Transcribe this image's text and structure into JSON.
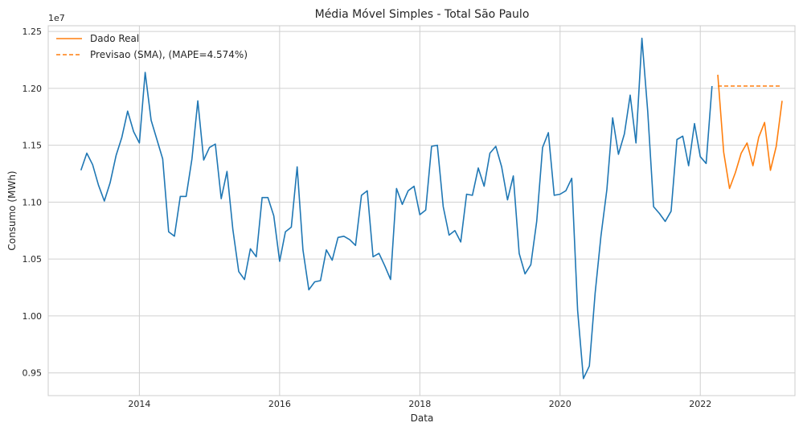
{
  "chart_data": {
    "type": "line",
    "title": "Média Móvel Simples - Total São Paulo",
    "xlabel": "Data",
    "ylabel": "Consumo (MWh)",
    "y_offset_label": "1e7",
    "y_scale": 10000000,
    "xlim": [
      2012.7,
      2023.35
    ],
    "ylim": [
      9300000,
      12550000
    ],
    "x_ticks": [
      2014,
      2016,
      2018,
      2020,
      2022
    ],
    "x_tick_labels": [
      "2014",
      "2016",
      "2018",
      "2020",
      "2022"
    ],
    "y_ticks": [
      9500000,
      10000000,
      10500000,
      11000000,
      11500000,
      12000000,
      12500000
    ],
    "y_tick_labels": [
      "0.95",
      "1.00",
      "1.05",
      "1.10",
      "1.15",
      "1.20",
      "1.25"
    ],
    "grid": true,
    "legend_position": "top-left",
    "colors": {
      "historico": "#1f77b4",
      "real": "#ff7f0e",
      "previsao": "#ff7f0e"
    },
    "series": [
      {
        "key": "historico",
        "style": "solid",
        "x": [
          2013.167,
          2013.25,
          2013.333,
          2013.417,
          2013.5,
          2013.583,
          2013.667,
          2013.75,
          2013.833,
          2013.917,
          2014.0,
          2014.083,
          2014.167,
          2014.25,
          2014.333,
          2014.417,
          2014.5,
          2014.583,
          2014.667,
          2014.75,
          2014.833,
          2014.917,
          2015.0,
          2015.083,
          2015.167,
          2015.25,
          2015.333,
          2015.417,
          2015.5,
          2015.583,
          2015.667,
          2015.75,
          2015.833,
          2015.917,
          2016.0,
          2016.083,
          2016.167,
          2016.25,
          2016.333,
          2016.417,
          2016.5,
          2016.583,
          2016.667,
          2016.75,
          2016.833,
          2016.917,
          2017.0,
          2017.083,
          2017.167,
          2017.25,
          2017.333,
          2017.417,
          2017.5,
          2017.583,
          2017.667,
          2017.75,
          2017.833,
          2017.917,
          2018.0,
          2018.083,
          2018.167,
          2018.25,
          2018.333,
          2018.417,
          2018.5,
          2018.583,
          2018.667,
          2018.75,
          2018.833,
          2018.917,
          2019.0,
          2019.083,
          2019.167,
          2019.25,
          2019.333,
          2019.417,
          2019.5,
          2019.583,
          2019.667,
          2019.75,
          2019.833,
          2019.917,
          2020.0,
          2020.083,
          2020.167,
          2020.25,
          2020.333,
          2020.417,
          2020.5,
          2020.583,
          2020.667,
          2020.75,
          2020.833,
          2020.917,
          2021.0,
          2021.083,
          2021.167,
          2021.25,
          2021.333,
          2021.417,
          2021.5,
          2021.583,
          2021.667,
          2021.75,
          2021.833,
          2021.917,
          2022.0,
          2022.083,
          2022.167
        ],
        "y": [
          11280000,
          11430000,
          11330000,
          11150000,
          11010000,
          11170000,
          11410000,
          11570000,
          11800000,
          11620000,
          11520000,
          12140000,
          11720000,
          11550000,
          11380000,
          10740000,
          10700000,
          11050000,
          11050000,
          11380000,
          11890000,
          11370000,
          11480000,
          11510000,
          11030000,
          11270000,
          10760000,
          10390000,
          10320000,
          10590000,
          10520000,
          11040000,
          11040000,
          10880000,
          10480000,
          10740000,
          10780000,
          11310000,
          10580000,
          10230000,
          10300000,
          10310000,
          10580000,
          10490000,
          10690000,
          10700000,
          10670000,
          10620000,
          11060000,
          11100000,
          10520000,
          10550000,
          10440000,
          10320000,
          11120000,
          10980000,
          11100000,
          11140000,
          10890000,
          10930000,
          11490000,
          11500000,
          10960000,
          10710000,
          10750000,
          10650000,
          11070000,
          11060000,
          11300000,
          11140000,
          11430000,
          11490000,
          11310000,
          11020000,
          11230000,
          10550000,
          10370000,
          10450000,
          10830000,
          11480000,
          11610000,
          11060000,
          11070000,
          11100000,
          11210000,
          10050000,
          9450000,
          9560000,
          10200000,
          10700000,
          11110000,
          11740000,
          11420000,
          11600000,
          11940000,
          11520000,
          12440000,
          11800000,
          10960000,
          10900000,
          10830000,
          10920000,
          11550000,
          11580000,
          11320000,
          11690000,
          11400000,
          11340000,
          12020000
        ]
      },
      {
        "key": "real",
        "name": "Dado Real",
        "style": "solid",
        "x": [
          2022.25,
          2022.333,
          2022.417,
          2022.5,
          2022.583,
          2022.667,
          2022.75,
          2022.833,
          2022.917,
          2023.0,
          2023.083,
          2023.167
        ],
        "y": [
          12120000,
          11440000,
          11120000,
          11260000,
          11430000,
          11520000,
          11320000,
          11570000,
          11700000,
          11280000,
          11490000,
          11890000
        ]
      },
      {
        "key": "previsao",
        "name": "Previsao (SMA), (MAPE=4.574%)",
        "style": "dashed",
        "x": [
          2022.25,
          2022.333,
          2022.417,
          2022.5,
          2022.583,
          2022.667,
          2022.75,
          2022.833,
          2022.917,
          2023.0,
          2023.083,
          2023.167
        ],
        "y": [
          12020000,
          12020000,
          12020000,
          12020000,
          12020000,
          12020000,
          12020000,
          12020000,
          12020000,
          12020000,
          12020000,
          12020000
        ]
      }
    ]
  }
}
